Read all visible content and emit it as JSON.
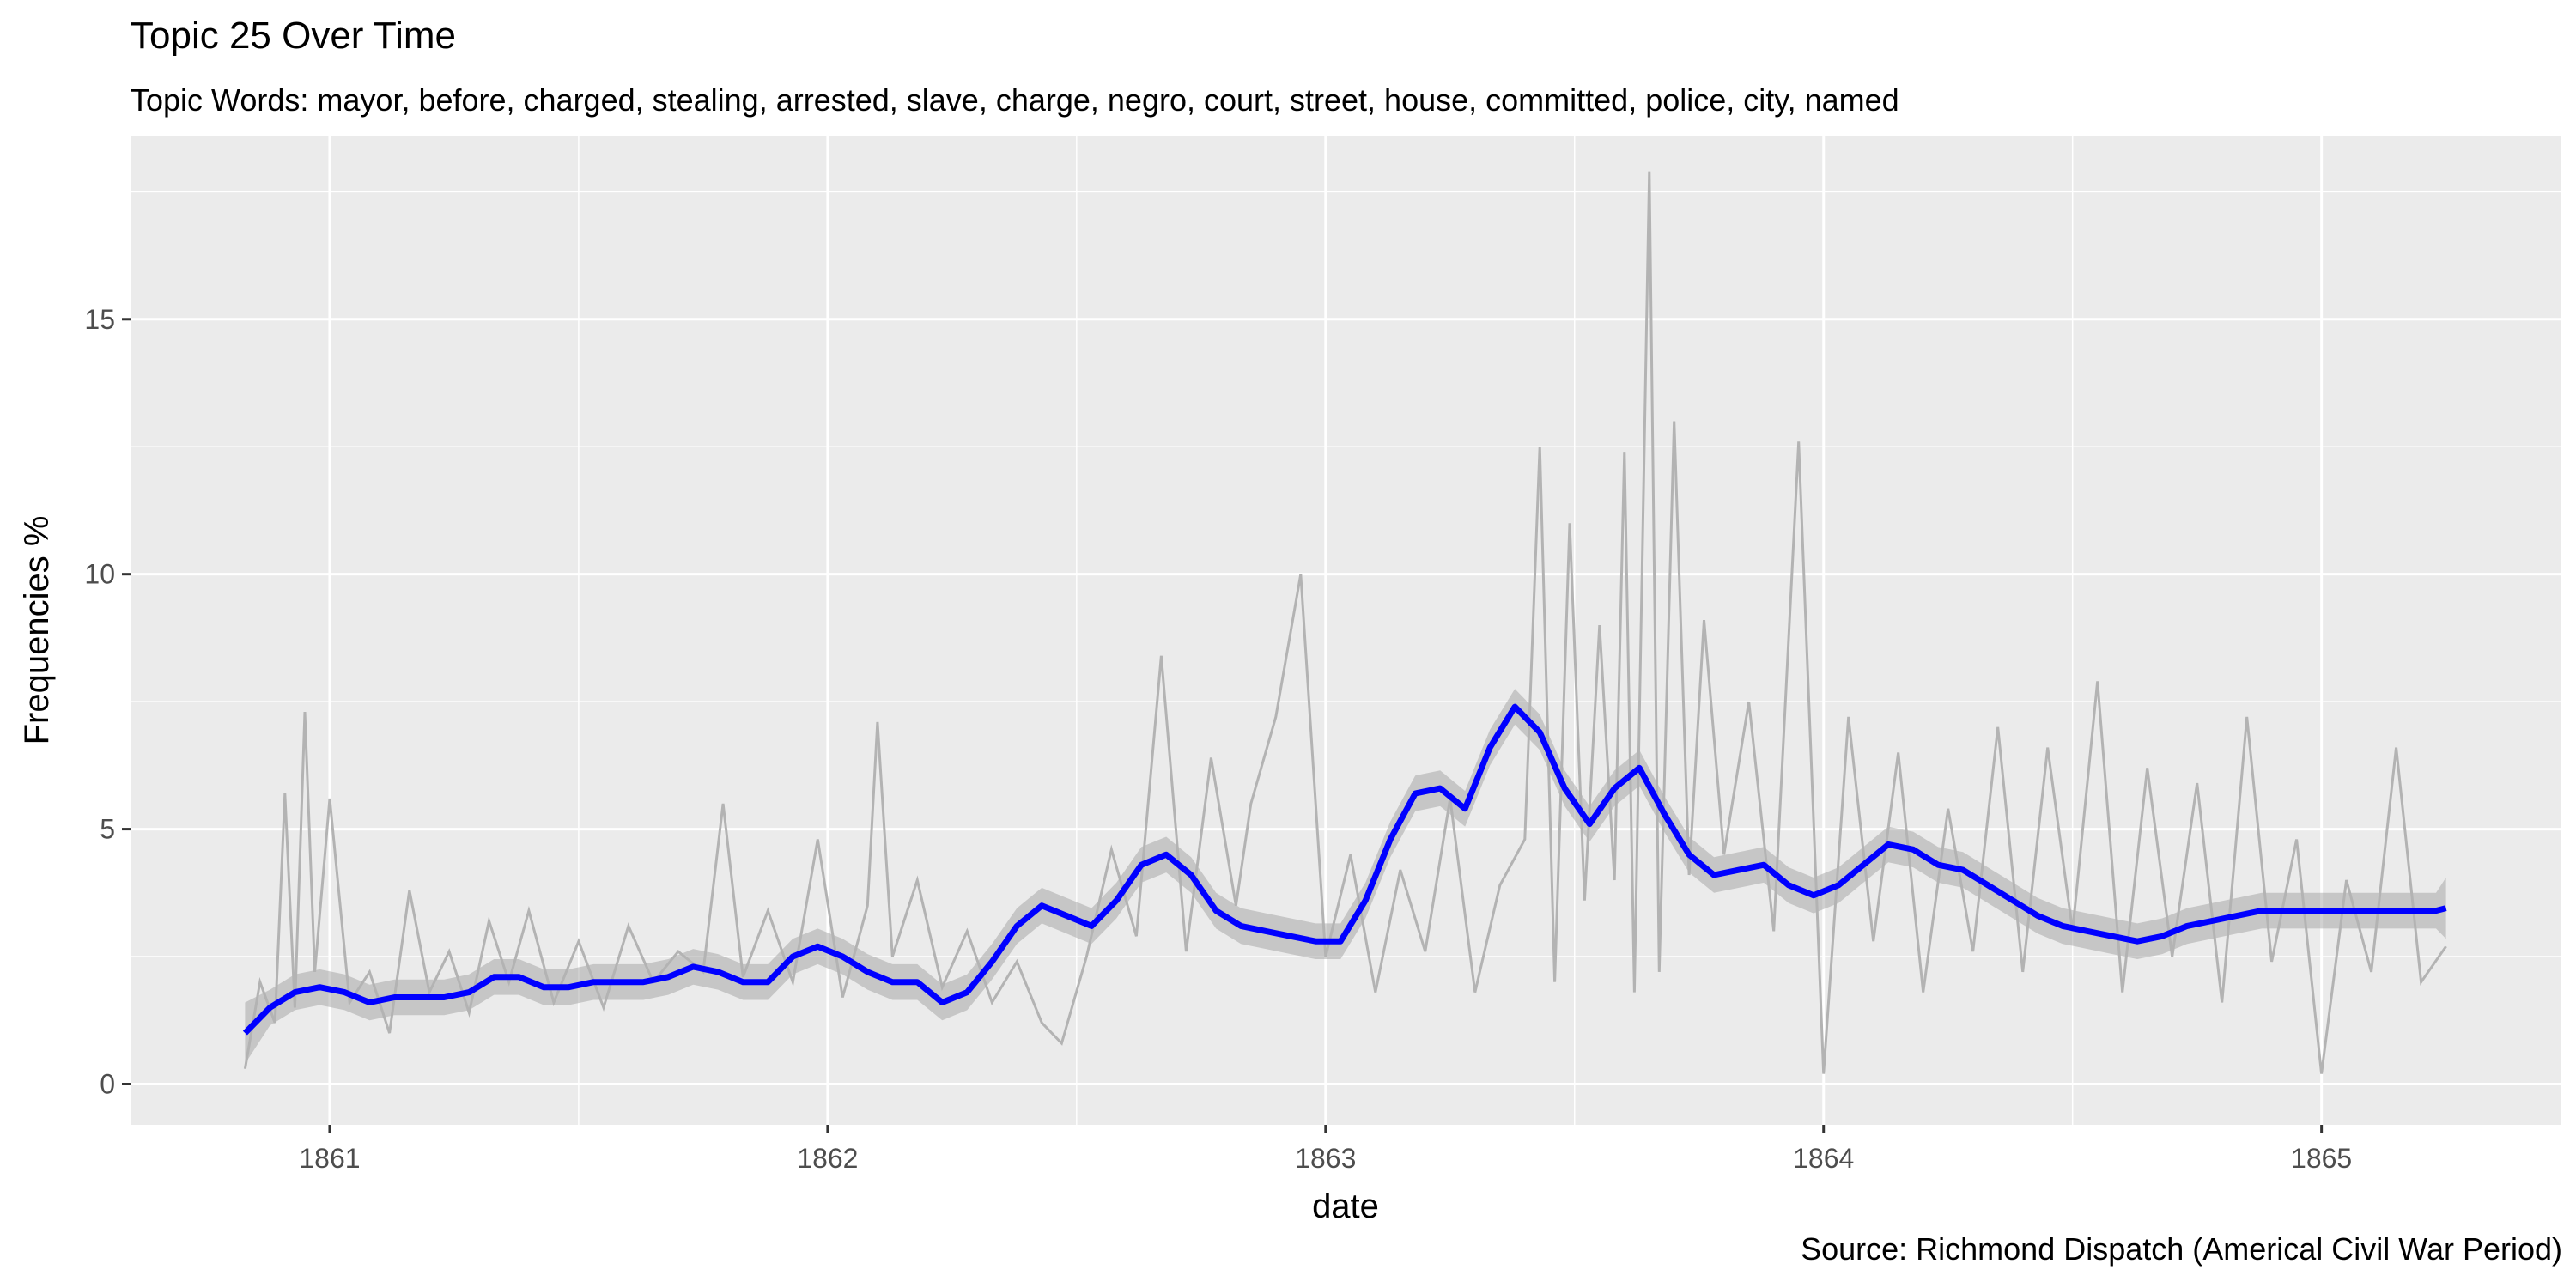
{
  "chart_data": {
    "type": "line",
    "title": "Topic 25 Over Time",
    "subtitle": "Topic Words: mayor, before, charged, stealing, arrested, slave, charge, negro, court, street, house, committed, police, city, named",
    "caption": "Source: Richmond Dispatch (Americal Civil War Period)",
    "xlabel": "date",
    "ylabel": "Frequencies %",
    "x_ticks": [
      "1861",
      "1862",
      "1863",
      "1864",
      "1865"
    ],
    "y_ticks": [
      "0",
      "5",
      "10",
      "15"
    ],
    "xlim": [
      1860.6,
      1865.48
    ],
    "ylim": [
      -0.8,
      18.6
    ],
    "grid": true,
    "background": "#EBEBEB",
    "colors": {
      "raw": "#B3B3B3",
      "smooth": "#0000FF",
      "ribbon": "#999999"
    },
    "series": [
      {
        "role": "raw frequencies",
        "x": [
          1860.83,
          1860.86,
          1860.89,
          1860.91,
          1860.93,
          1860.95,
          1860.97,
          1861.0,
          1861.04,
          1861.08,
          1861.12,
          1861.16,
          1861.2,
          1861.24,
          1861.28,
          1861.32,
          1861.36,
          1861.4,
          1861.45,
          1861.5,
          1861.55,
          1861.6,
          1861.65,
          1861.7,
          1861.75,
          1861.79,
          1861.83,
          1861.88,
          1861.93,
          1861.98,
          1862.03,
          1862.08,
          1862.1,
          1862.13,
          1862.18,
          1862.23,
          1862.28,
          1862.33,
          1862.38,
          1862.43,
          1862.47,
          1862.52,
          1862.57,
          1862.62,
          1862.67,
          1862.72,
          1862.77,
          1862.82,
          1862.85,
          1862.9,
          1862.95,
          1863.0,
          1863.05,
          1863.1,
          1863.15,
          1863.2,
          1863.25,
          1863.3,
          1863.35,
          1863.4,
          1863.43,
          1863.46,
          1863.49,
          1863.52,
          1863.55,
          1863.58,
          1863.6,
          1863.62,
          1863.65,
          1863.67,
          1863.7,
          1863.73,
          1863.76,
          1863.8,
          1863.85,
          1863.9,
          1863.95,
          1864.0,
          1864.05,
          1864.1,
          1864.15,
          1864.2,
          1864.25,
          1864.3,
          1864.35,
          1864.4,
          1864.45,
          1864.5,
          1864.55,
          1864.6,
          1864.65,
          1864.7,
          1864.75,
          1864.8,
          1864.85,
          1864.9,
          1864.95,
          1865.0,
          1865.05,
          1865.1,
          1865.15,
          1865.2,
          1865.25
        ],
        "y": [
          0.3,
          2.0,
          1.2,
          5.7,
          1.5,
          7.3,
          2.2,
          5.6,
          1.6,
          2.2,
          1.0,
          3.8,
          1.8,
          2.6,
          1.4,
          3.2,
          2.0,
          3.4,
          1.6,
          2.8,
          1.5,
          3.1,
          2.0,
          2.6,
          2.2,
          5.5,
          2.1,
          3.4,
          2.0,
          4.8,
          1.7,
          3.5,
          7.1,
          2.5,
          4.0,
          1.9,
          3.0,
          1.6,
          2.4,
          1.2,
          0.8,
          2.5,
          4.6,
          2.9,
          8.4,
          2.6,
          6.4,
          3.5,
          5.5,
          7.2,
          10.0,
          2.5,
          4.5,
          1.8,
          4.2,
          2.6,
          5.6,
          1.8,
          3.9,
          4.8,
          12.5,
          2.0,
          11.0,
          3.6,
          9.0,
          4.0,
          12.4,
          1.8,
          17.9,
          2.2,
          13.0,
          4.1,
          9.1,
          4.5,
          7.5,
          3.0,
          12.6,
          0.2,
          7.2,
          2.8,
          6.5,
          1.8,
          5.4,
          2.6,
          7.0,
          2.2,
          6.6,
          3.0,
          7.9,
          1.8,
          6.2,
          2.5,
          5.9,
          1.6,
          7.2,
          2.4,
          4.8,
          0.2,
          4.0,
          2.2,
          6.6,
          2.0,
          2.7
        ]
      },
      {
        "role": "smoothed trend",
        "x": [
          1860.83,
          1860.88,
          1860.93,
          1860.98,
          1861.03,
          1861.08,
          1861.13,
          1861.18,
          1861.23,
          1861.28,
          1861.33,
          1861.38,
          1861.43,
          1861.48,
          1861.53,
          1861.58,
          1861.63,
          1861.68,
          1861.73,
          1861.78,
          1861.83,
          1861.88,
          1861.93,
          1861.98,
          1862.03,
          1862.08,
          1862.13,
          1862.18,
          1862.23,
          1862.28,
          1862.33,
          1862.38,
          1862.43,
          1862.48,
          1862.53,
          1862.58,
          1862.63,
          1862.68,
          1862.73,
          1862.78,
          1862.83,
          1862.88,
          1862.93,
          1862.98,
          1863.03,
          1863.08,
          1863.13,
          1863.18,
          1863.23,
          1863.28,
          1863.33,
          1863.38,
          1863.43,
          1863.48,
          1863.53,
          1863.58,
          1863.63,
          1863.68,
          1863.73,
          1863.78,
          1863.83,
          1863.88,
          1863.93,
          1863.98,
          1864.03,
          1864.08,
          1864.13,
          1864.18,
          1864.23,
          1864.28,
          1864.33,
          1864.38,
          1864.43,
          1864.48,
          1864.53,
          1864.58,
          1864.63,
          1864.68,
          1864.73,
          1864.78,
          1864.83,
          1864.88,
          1864.93,
          1864.98,
          1865.03,
          1865.08,
          1865.13,
          1865.18,
          1865.23,
          1865.25
        ],
        "y": [
          1.0,
          1.5,
          1.8,
          1.9,
          1.8,
          1.6,
          1.7,
          1.7,
          1.7,
          1.8,
          2.1,
          2.1,
          1.9,
          1.9,
          2.0,
          2.0,
          2.0,
          2.1,
          2.3,
          2.2,
          2.0,
          2.0,
          2.5,
          2.7,
          2.5,
          2.2,
          2.0,
          2.0,
          1.6,
          1.8,
          2.4,
          3.1,
          3.5,
          3.3,
          3.1,
          3.6,
          4.3,
          4.5,
          4.1,
          3.4,
          3.1,
          3.0,
          2.9,
          2.8,
          2.8,
          3.6,
          4.8,
          5.7,
          5.8,
          5.4,
          6.6,
          7.4,
          6.9,
          5.8,
          5.1,
          5.8,
          6.2,
          5.3,
          4.5,
          4.1,
          4.2,
          4.3,
          3.9,
          3.7,
          3.9,
          4.3,
          4.7,
          4.6,
          4.3,
          4.2,
          3.9,
          3.6,
          3.3,
          3.1,
          3.0,
          2.9,
          2.8,
          2.9,
          3.1,
          3.2,
          3.3,
          3.4,
          3.4,
          3.4,
          3.4,
          3.4,
          3.4,
          3.4,
          3.4,
          3.45
        ]
      }
    ]
  }
}
